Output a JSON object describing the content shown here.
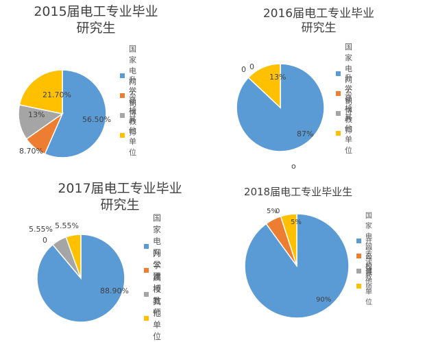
{
  "colors": {
    "grid_company": "#5B9BD5",
    "further_study": "#ED7D31",
    "teacher": "#A5A5A5",
    "other": "#FFC000"
  },
  "chart_data": [
    {
      "type": "pie",
      "title_line1": "2015届电工专业毕业",
      "title_line2": "研究生",
      "categories": [
        "国家电网公司",
        "升学读博",
        "高校教师",
        "其他单位"
      ],
      "values": [
        56.5,
        8.7,
        13.0,
        21.7
      ],
      "labels": [
        "56.50%",
        "8.70%",
        "13%",
        "21.70%"
      ],
      "legend_position": "right"
    },
    {
      "type": "pie",
      "title_line1": "2016届电工专业毕业",
      "title_line2": "研究生",
      "categories": [
        "国家电网公司",
        "升学读博",
        "高校教师",
        "其他单位"
      ],
      "values": [
        87,
        0,
        0,
        13
      ],
      "labels": [
        "87%",
        "0",
        "0",
        "13%"
      ],
      "legend_position": "right"
    },
    {
      "type": "pie",
      "title_line1": "2017届电工专业毕业",
      "title_line2": "研究生",
      "categories": [
        "国家电网公司",
        "升学读博",
        "高校教师",
        "其他单位"
      ],
      "values": [
        88.9,
        0,
        5.55,
        5.55
      ],
      "labels": [
        "88.90%",
        "0",
        "5.55%",
        "5.55%"
      ],
      "legend_position": "right"
    },
    {
      "type": "pie",
      "title_line1": "2018届电工专业毕业生",
      "title_line2": "",
      "categories": [
        "国家电网公司",
        "升学读博",
        "高校教师",
        "其他单位"
      ],
      "values": [
        90,
        5,
        0,
        5
      ],
      "labels": [
        "90%",
        "5%",
        "0",
        "5%"
      ],
      "legend_position": "right"
    }
  ],
  "stray_mark": "o"
}
